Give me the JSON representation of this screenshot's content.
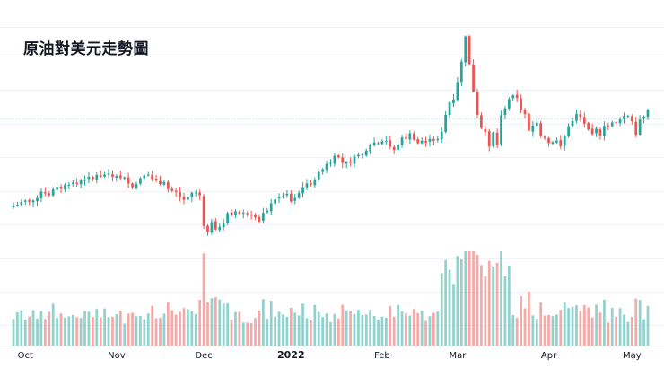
{
  "chart_data": {
    "type": "candlestick",
    "title": "原油對美元走勢圖",
    "x_ticks": [
      {
        "label": "Oct",
        "index": 3
      },
      {
        "label": "Nov",
        "index": 26
      },
      {
        "label": "Dec",
        "index": 48
      },
      {
        "label": "2022",
        "index": 70,
        "bold": true
      },
      {
        "label": "Feb",
        "index": 93
      },
      {
        "label": "Mar",
        "index": 112
      },
      {
        "label": "Apr",
        "index": 135
      },
      {
        "label": "May",
        "index": 156
      }
    ],
    "ylim": [
      45,
      132
    ],
    "reference_line": 103,
    "volume_max": 100,
    "colors": {
      "up": "#26a69a",
      "down": "#ef5350",
      "grid": "#f0f3fa",
      "ref": "#b2dfdb"
    },
    "closes": [
      75.0,
      75.2,
      76.1,
      76.6,
      76.2,
      76.6,
      77.4,
      79.5,
      78.9,
      78.3,
      80.2,
      81.0,
      80.4,
      81.7,
      81.7,
      82.4,
      82.0,
      83.1,
      83.3,
      84.3,
      83.6,
      84.9,
      84.3,
      85.0,
      85.3,
      84.3,
      84.6,
      83.9,
      84.1,
      82.1,
      80.9,
      81.9,
      83.8,
      84.7,
      85.0,
      83.6,
      83.2,
      81.9,
      82.6,
      80.3,
      79.7,
      79.4,
      77.8,
      76.8,
      77.8,
      79.1,
      79.2,
      78.3,
      68.3,
      66.4,
      69.6,
      67.2,
      68.1,
      69.1,
      72.5,
      71.8,
      73.1,
      72.4,
      72.6,
      72.2,
      71.9,
      71.1,
      69.8,
      72.6,
      73.3,
      75.7,
      77.0,
      77.8,
      78.0,
      78.8,
      76.3,
      77.4,
      79.0,
      80.9,
      82.1,
      81.8,
      83.3,
      85.9,
      86.7,
      88.5,
      88.8,
      91.1,
      90.6,
      88.8,
      89.1,
      88.8,
      90.9,
      91.4,
      91.5,
      92.8,
      94.5,
      95.4,
      95.2,
      95.8,
      95.9,
      94.0,
      93.0,
      94.8,
      97.0,
      96.6,
      98.4,
      96.3,
      95.2,
      96.0,
      95.4,
      96.6,
      96.0,
      96.6,
      98.9,
      104.4,
      108.4,
      109.4,
      115.0,
      121.6,
      129.8,
      120.8,
      111.9,
      104.4,
      100.1,
      98.8,
      94.1,
      98.6,
      94.6,
      104.2,
      106.5,
      109.5,
      110.7,
      109.8,
      106.0,
      104.6,
      99.2,
      100.9,
      101.8,
      97.5,
      96.9,
      95.3,
      95.5,
      96.0,
      94.2,
      97.5,
      100.7,
      102.3,
      104.6,
      103.7,
      101.5,
      99.6,
      98.2,
      99.9,
      97.7,
      100.8,
      100.6,
      101.9,
      101.9,
      102.9,
      104.1,
      104.0,
      102.3,
      97.9,
      102.8,
      103.8,
      106.0
    ]
  }
}
